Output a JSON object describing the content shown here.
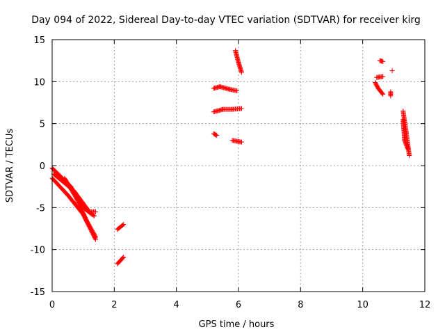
{
  "chart_data": {
    "type": "scatter",
    "title": "Day 094 of 2022, Sidereal Day-to-day VTEC variation (SDTVAR) for receiver kirg",
    "xlabel": "GPS time / hours",
    "ylabel": "SDTVAR / TECUs",
    "xlim": [
      0,
      12
    ],
    "ylim": [
      -15,
      15
    ],
    "xticks": [
      0,
      2,
      4,
      6,
      8,
      10,
      12
    ],
    "yticks": [
      -15,
      -10,
      -5,
      0,
      5,
      10,
      15
    ],
    "grid": true,
    "marker": "+",
    "color": "#ff0000",
    "segments": [
      {
        "x": [
          0.0,
          0.6,
          1.0,
          1.35
        ],
        "y": [
          -0.3,
          -2.5,
          -5.0,
          -6.0
        ]
      },
      {
        "x": [
          0.0,
          0.5,
          1.0,
          1.4
        ],
        "y": [
          -1.5,
          -3.5,
          -5.8,
          -8.8
        ]
      },
      {
        "x": [
          0.05,
          0.7,
          1.2,
          1.4
        ],
        "y": [
          -1.0,
          -3.0,
          -5.5,
          -5.5
        ]
      },
      {
        "x": [
          0.4,
          0.8,
          1.1,
          1.4
        ],
        "y": [
          -1.5,
          -4.0,
          -6.5,
          -8.5
        ]
      },
      {
        "x": [
          2.1,
          2.3
        ],
        "y": [
          -7.6,
          -7.0
        ]
      },
      {
        "x": [
          2.1,
          2.3
        ],
        "y": [
          -11.7,
          -10.9
        ]
      },
      {
        "x": [
          5.2,
          5.3
        ],
        "y": [
          3.8,
          3.6
        ]
      },
      {
        "x": [
          5.2,
          5.4,
          5.7,
          5.95
        ],
        "y": [
          9.2,
          9.4,
          9.1,
          8.9
        ]
      },
      {
        "x": [
          5.2,
          5.5,
          5.8,
          6.1
        ],
        "y": [
          6.4,
          6.7,
          6.7,
          6.8
        ]
      },
      {
        "x": [
          5.8,
          6.1
        ],
        "y": [
          3.0,
          2.8
        ]
      },
      {
        "x": [
          5.9,
          6.0,
          6.1
        ],
        "y": [
          13.7,
          12.3,
          11.1
        ]
      },
      {
        "x": [
          10.4,
          10.5,
          10.65
        ],
        "y": [
          9.9,
          9.2,
          8.5
        ]
      },
      {
        "x": [
          10.45,
          10.65
        ],
        "y": [
          10.5,
          10.6
        ]
      },
      {
        "x": [
          10.55,
          10.65
        ],
        "y": [
          12.5,
          12.4
        ]
      },
      {
        "x": [
          10.9,
          10.9
        ],
        "y": [
          8.8,
          8.3
        ]
      },
      {
        "x": [
          11.3,
          11.4,
          11.5
        ],
        "y": [
          6.5,
          4.0,
          1.2
        ]
      },
      {
        "x": [
          11.3,
          11.35,
          11.45
        ],
        "y": [
          5.5,
          3.0,
          2.0
        ]
      }
    ],
    "points": [
      {
        "x": 10.95,
        "y": 11.3
      }
    ]
  }
}
